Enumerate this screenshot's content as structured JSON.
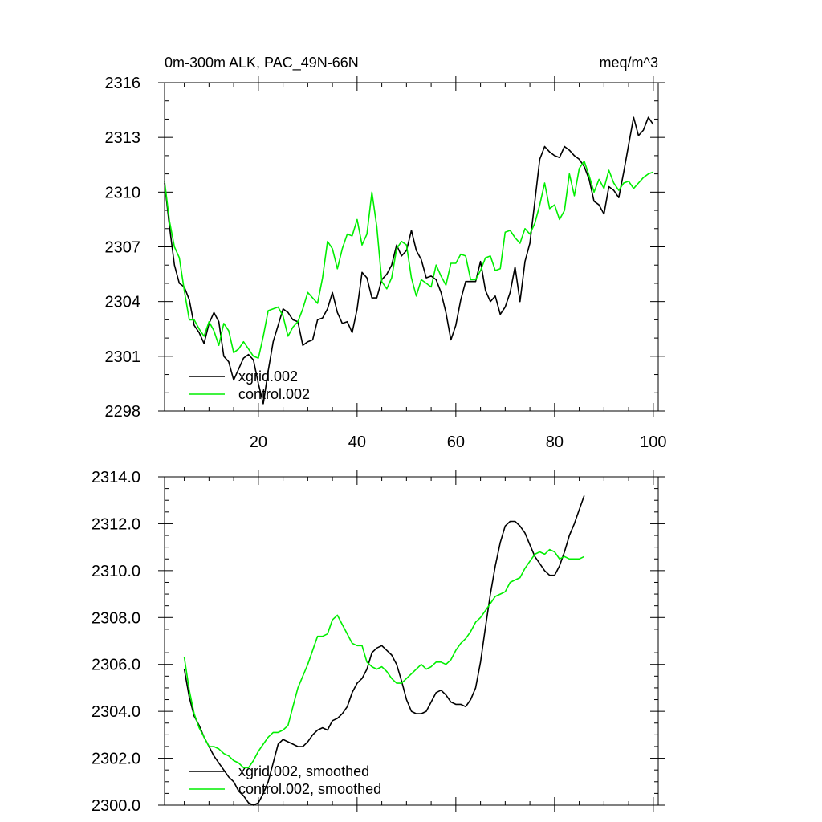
{
  "chart_data": [
    {
      "type": "line",
      "title_left": "0m-300m ALK, PAC_49N-66N",
      "title_right": "meq/m^3",
      "xlim": [
        1,
        101
      ],
      "ylim": [
        2298,
        2316
      ],
      "x_ticks": [
        20,
        40,
        60,
        80,
        100
      ],
      "x_tick_labels": [
        "20",
        "40",
        "60",
        "80",
        "100"
      ],
      "y_ticks": [
        2298,
        2301,
        2304,
        2307,
        2310,
        2313,
        2316
      ],
      "y_tick_labels": [
        "2298",
        "2301",
        "2304",
        "2307",
        "2310",
        "2313",
        "2316"
      ],
      "colors": {
        "xgrid": "#000000",
        "control": "#00ee00"
      },
      "legend": [
        "xgrid.002",
        "control.002"
      ],
      "series": [
        {
          "name": "xgrid.002",
          "color": "#000000",
          "x_start": 1,
          "values": [
            2310.5,
            2308.1,
            2306.0,
            2305.0,
            2304.8,
            2304.1,
            2302.7,
            2302.3,
            2301.7,
            2302.8,
            2303.4,
            2302.9,
            2301.0,
            2300.7,
            2299.7,
            2300.3,
            2300.9,
            2301.1,
            2300.8,
            2299.5,
            2298.4,
            2300.2,
            2301.8,
            2302.7,
            2303.6,
            2303.4,
            2303.0,
            2302.9,
            2301.6,
            2301.8,
            2301.9,
            2303.0,
            2303.1,
            2303.6,
            2304.5,
            2303.4,
            2302.8,
            2302.9,
            2302.3,
            2303.6,
            2305.6,
            2305.3,
            2304.2,
            2304.2,
            2305.2,
            2305.5,
            2306.0,
            2307.1,
            2306.5,
            2306.8,
            2307.9,
            2306.8,
            2306.3,
            2305.3,
            2305.4,
            2305.2,
            2304.5,
            2303.4,
            2301.9,
            2302.7,
            2304.1,
            2305.1,
            2305.1,
            2305.1,
            2306.2,
            2304.6,
            2304.0,
            2304.3,
            2303.3,
            2303.7,
            2304.5,
            2305.9,
            2304.0,
            2306.2,
            2307.2,
            2309.5,
            2311.8,
            2312.5,
            2312.2,
            2312.0,
            2311.9,
            2312.5,
            2312.3,
            2312.0,
            2311.8,
            2311.4,
            2310.7,
            2309.5,
            2309.3,
            2308.8,
            2310.3,
            2310.1,
            2309.7,
            2311.1,
            2312.6,
            2314.1,
            2313.1,
            2313.4,
            2314.1,
            2313.7
          ]
        },
        {
          "name": "control.002",
          "color": "#00ee00",
          "x_start": 1,
          "values": [
            2310.6,
            2308.4,
            2307.0,
            2306.4,
            2304.6,
            2303.0,
            2303.0,
            2302.5,
            2302.1,
            2302.9,
            2302.4,
            2301.6,
            2302.8,
            2302.4,
            2301.2,
            2301.4,
            2301.8,
            2301.4,
            2301.0,
            2300.9,
            2302.1,
            2303.5,
            2303.6,
            2303.7,
            2303.2,
            2302.1,
            2302.6,
            2302.9,
            2303.6,
            2304.5,
            2304.2,
            2303.9,
            2305.3,
            2307.3,
            2306.9,
            2305.8,
            2306.9,
            2307.7,
            2307.6,
            2308.5,
            2307.1,
            2307.7,
            2310.0,
            2308.1,
            2305.1,
            2304.7,
            2305.3,
            2306.9,
            2307.3,
            2307.1,
            2305.3,
            2304.3,
            2305.2,
            2305.0,
            2304.8,
            2306.0,
            2305.4,
            2304.9,
            2306.1,
            2306.1,
            2306.6,
            2306.5,
            2305.2,
            2305.2,
            2305.7,
            2306.4,
            2306.5,
            2305.7,
            2305.8,
            2307.8,
            2307.9,
            2307.5,
            2307.2,
            2308.0,
            2307.7,
            2308.3,
            2309.3,
            2310.5,
            2309.1,
            2309.3,
            2308.5,
            2309.0,
            2311.0,
            2309.8,
            2311.3,
            2311.7,
            2310.9,
            2310.0,
            2310.7,
            2310.2,
            2311.2,
            2310.5,
            2310.1,
            2310.5,
            2310.6,
            2310.2,
            2310.5,
            2310.8,
            2311.0,
            2311.1
          ]
        }
      ]
    },
    {
      "type": "line",
      "xlim": [
        1,
        101
      ],
      "ylim": [
        2300.0,
        2314.0
      ],
      "x_ticks": [
        20,
        40,
        60,
        80,
        100
      ],
      "y_ticks": [
        2300.0,
        2302.0,
        2304.0,
        2306.0,
        2308.0,
        2310.0,
        2312.0,
        2314.0
      ],
      "y_tick_labels": [
        "2300.0",
        "2302.0",
        "2304.0",
        "2306.0",
        "2308.0",
        "2310.0",
        "2312.0",
        "2314.0"
      ],
      "legend": [
        "xgrid.002, smoothed",
        "control.002, smoothed"
      ],
      "series": [
        {
          "name": "xgrid.002, smoothed",
          "color": "#000000",
          "x_start": 5,
          "values": [
            2305.8,
            2304.6,
            2303.8,
            2303.4,
            2302.9,
            2302.5,
            2302.1,
            2301.8,
            2301.5,
            2301.2,
            2301.0,
            2300.6,
            2300.4,
            2300.1,
            2300.0,
            2300.1,
            2300.5,
            2301.0,
            2301.8,
            2302.6,
            2302.8,
            2302.7,
            2302.6,
            2302.5,
            2302.5,
            2302.7,
            2303.0,
            2303.2,
            2303.3,
            2303.2,
            2303.6,
            2303.7,
            2303.9,
            2304.2,
            2304.8,
            2305.2,
            2305.4,
            2305.8,
            2306.5,
            2306.7,
            2306.8,
            2306.6,
            2306.4,
            2306.0,
            2305.3,
            2304.5,
            2304.0,
            2303.9,
            2303.9,
            2304.0,
            2304.4,
            2304.8,
            2304.9,
            2304.7,
            2304.4,
            2304.3,
            2304.3,
            2304.2,
            2304.5,
            2305.0,
            2306.1,
            2307.6,
            2309.0,
            2310.2,
            2311.2,
            2311.9,
            2312.1,
            2312.1,
            2311.9,
            2311.6,
            2311.1,
            2310.6,
            2310.3,
            2310.0,
            2309.8,
            2309.8,
            2310.2,
            2310.8,
            2311.5,
            2312.0,
            2312.6,
            2313.2
          ]
        },
        {
          "name": "control.002, smoothed",
          "color": "#00ee00",
          "x_start": 5,
          "values": [
            2306.3,
            2304.9,
            2303.9,
            2303.3,
            2302.9,
            2302.5,
            2302.5,
            2302.4,
            2302.2,
            2302.1,
            2301.9,
            2301.8,
            2301.6,
            2301.6,
            2301.9,
            2302.3,
            2302.6,
            2302.9,
            2303.1,
            2303.1,
            2303.2,
            2303.4,
            2304.2,
            2305.0,
            2305.5,
            2306.0,
            2306.6,
            2307.2,
            2307.2,
            2307.3,
            2307.9,
            2308.1,
            2307.7,
            2307.3,
            2306.9,
            2306.8,
            2306.8,
            2306.1,
            2305.9,
            2305.8,
            2305.9,
            2305.7,
            2305.4,
            2305.2,
            2305.2,
            2305.4,
            2305.6,
            2305.8,
            2306.0,
            2305.8,
            2305.9,
            2306.1,
            2306.1,
            2306.0,
            2306.2,
            2306.6,
            2306.9,
            2307.1,
            2307.4,
            2307.8,
            2308.0,
            2308.3,
            2308.6,
            2308.9,
            2309.0,
            2309.1,
            2309.5,
            2309.6,
            2309.7,
            2310.1,
            2310.4,
            2310.7,
            2310.8,
            2310.7,
            2310.9,
            2310.8,
            2310.5,
            2310.6,
            2310.5,
            2310.5,
            2310.5,
            2310.6
          ]
        }
      ]
    }
  ]
}
